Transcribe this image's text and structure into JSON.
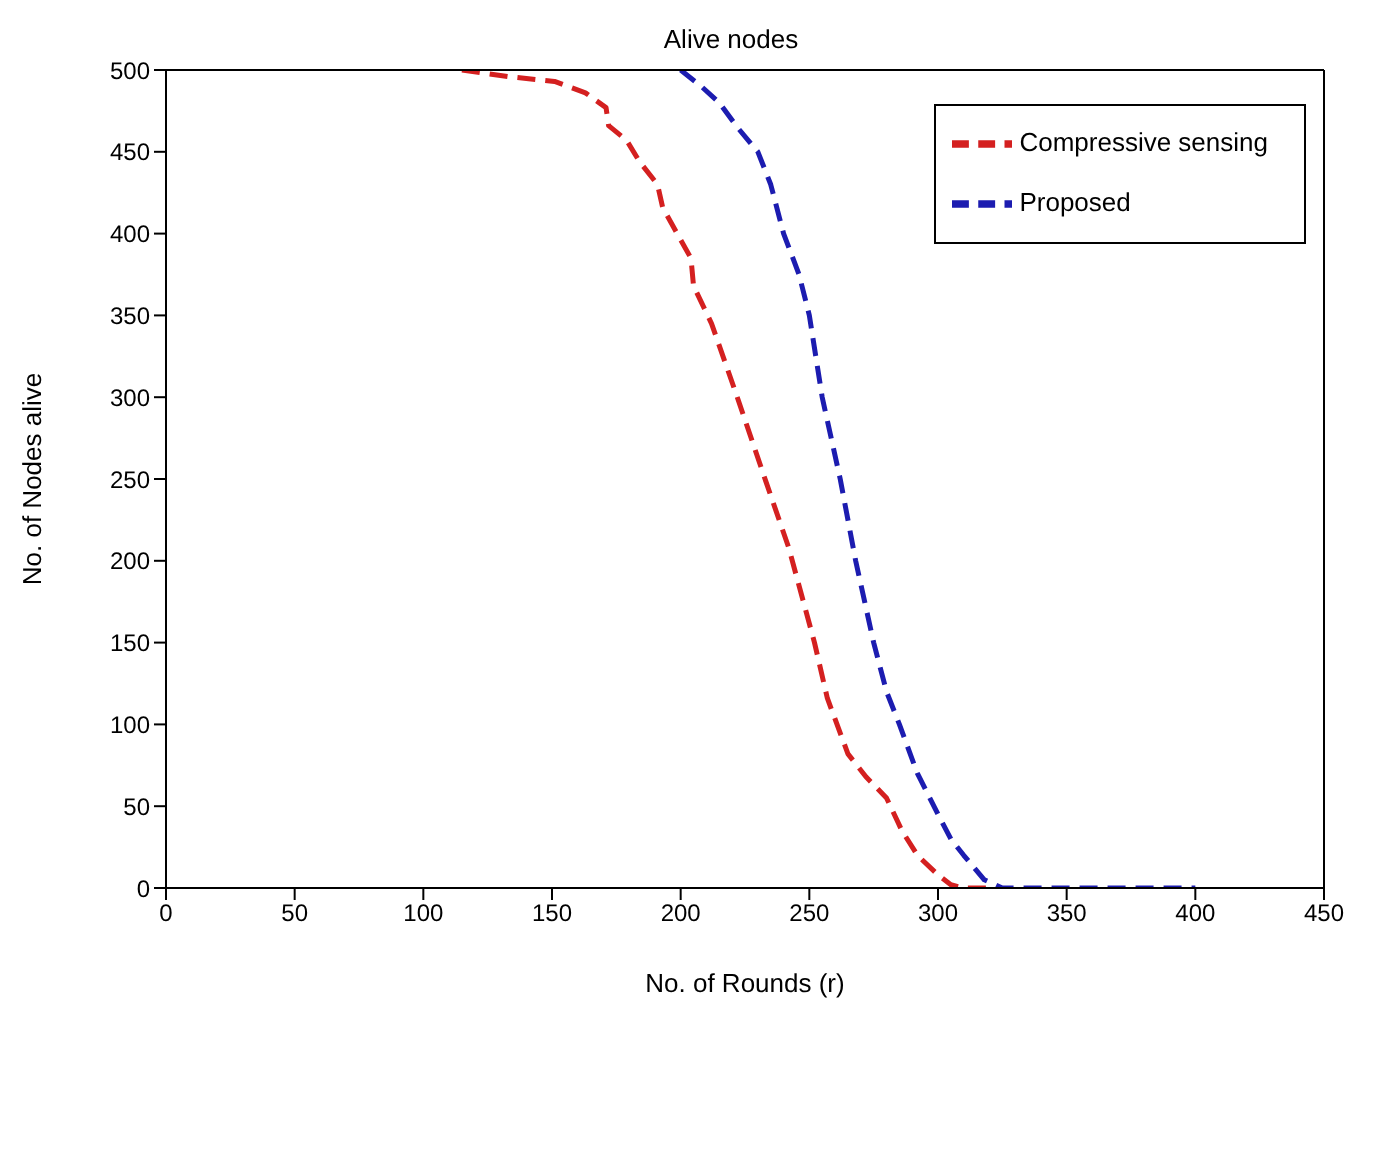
{
  "chart_data": {
    "type": "line",
    "title": "Alive nodes",
    "xlabel": "No. of Rounds (r)",
    "ylabel": "No. of  Nodes alive",
    "xlim": [
      0,
      450
    ],
    "xticks": [
      0,
      50,
      100,
      150,
      200,
      250,
      300,
      350,
      400,
      450
    ],
    "ylim": [
      0,
      500
    ],
    "yticks": [
      0,
      50,
      100,
      150,
      200,
      250,
      300,
      350,
      400,
      450,
      500
    ],
    "legend": "top right",
    "line_style": "dashed",
    "marker": "none",
    "series": [
      {
        "name": "Compressive sensing",
        "color": "#d42020",
        "x": [
          115,
          133,
          151,
          163,
          171,
          172,
          179,
          184,
          191,
          193,
          199,
          204,
          205,
          212,
          222,
          233,
          242,
          252,
          257,
          265,
          272,
          280,
          286,
          292,
          300,
          305,
          310,
          320
        ],
        "values": [
          500,
          496,
          493,
          486,
          477,
          466,
          457,
          444,
          430,
          416,
          399,
          385,
          368,
          345,
          300,
          249,
          208,
          150,
          116,
          82,
          68,
          55,
          35,
          20,
          8,
          2,
          0,
          0
        ]
      },
      {
        "name": "Proposed",
        "color": "#1c1cb0",
        "x": [
          200,
          208,
          215,
          222,
          230,
          235,
          240,
          246,
          250,
          255,
          262,
          268,
          275,
          280,
          285,
          292,
          300,
          305,
          310,
          318,
          325,
          350,
          400
        ],
        "values": [
          500,
          490,
          480,
          465,
          450,
          430,
          400,
          375,
          350,
          300,
          250,
          200,
          150,
          120,
          100,
          70,
          45,
          30,
          20,
          5,
          0,
          0,
          0
        ]
      }
    ]
  }
}
